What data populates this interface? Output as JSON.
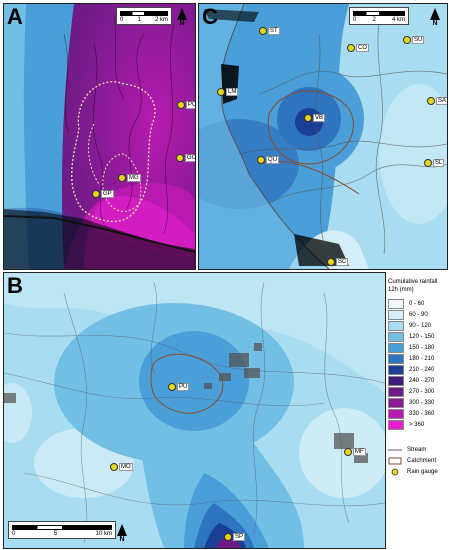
{
  "panels": {
    "A": {
      "letter": "A",
      "scale": [
        "0",
        "1",
        "2 km"
      ],
      "north": "N",
      "gauges": [
        {
          "code": "MG"
        },
        {
          "code": "GP"
        },
        {
          "code": "PO"
        },
        {
          "code": "GO"
        }
      ]
    },
    "C": {
      "letter": "C",
      "scale": [
        "0",
        "2",
        "4 km"
      ],
      "north": "N",
      "gauges": [
        {
          "code": "ST"
        },
        {
          "code": "CO"
        },
        {
          "code": "SU"
        },
        {
          "code": "LM"
        },
        {
          "code": "VB"
        },
        {
          "code": "SA"
        },
        {
          "code": "QU"
        },
        {
          "code": "SL"
        },
        {
          "code": "SC"
        }
      ]
    },
    "B": {
      "letter": "B",
      "scale": [
        "0",
        "5",
        "10 km"
      ],
      "north": "N",
      "gauges": [
        {
          "code": "PU"
        },
        {
          "code": "MO"
        },
        {
          "code": "MF"
        },
        {
          "code": "SP"
        }
      ]
    }
  },
  "legend": {
    "title_line1": "Cumulative rainfall",
    "title_line2": "12h (mm)",
    "classes": [
      {
        "label": "0 - 60",
        "color": "#eef7fb"
      },
      {
        "label": "60 - 90",
        "color": "#d3eef7"
      },
      {
        "label": "90 - 120",
        "color": "#a8dcf0"
      },
      {
        "label": "120 - 150",
        "color": "#72bfe6"
      },
      {
        "label": "150 - 180",
        "color": "#4a9fd8"
      },
      {
        "label": "180 - 210",
        "color": "#2f74bf"
      },
      {
        "label": "210 - 240",
        "color": "#1b3f94"
      },
      {
        "label": "240 - 270",
        "color": "#421a78"
      },
      {
        "label": "270 - 300",
        "color": "#6e1b86"
      },
      {
        "label": "300 - 330",
        "color": "#8d1b99"
      },
      {
        "label": "330 - 360",
        "color": "#b81ab0"
      },
      {
        "label": "> 360",
        "color": "#e51fd0"
      }
    ],
    "symbols": [
      {
        "label": "Stream"
      },
      {
        "label": "Catchment"
      },
      {
        "label": "Rain gauge"
      }
    ]
  }
}
